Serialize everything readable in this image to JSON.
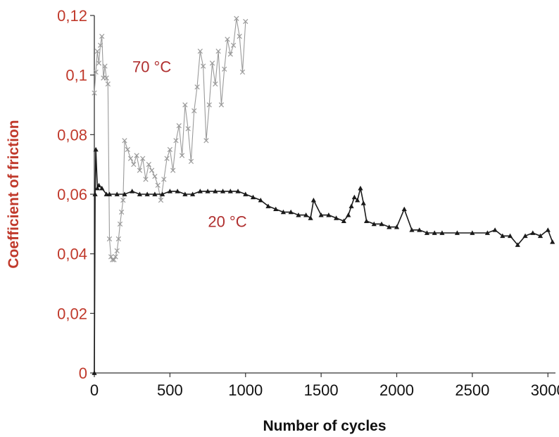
{
  "chart_data": {
    "type": "line",
    "xlabel": "Number of cycles",
    "ylabel": "Coefficient of friction",
    "xlim": [
      0,
      3050
    ],
    "ylim": [
      0,
      0.12
    ],
    "x_ticks": [
      "0",
      "500",
      "1000",
      "1500",
      "2000",
      "2500",
      "3000"
    ],
    "x_tick_values": [
      0,
      500,
      1000,
      1500,
      2000,
      2500,
      3000
    ],
    "y_ticks": [
      "0",
      "0,02",
      "0,04",
      "0,06",
      "0,08",
      "0,1",
      "0,12"
    ],
    "y_tick_values": [
      0,
      0.02,
      0.04,
      0.06,
      0.08,
      0.1,
      0.12
    ],
    "grid": false,
    "annotations": [
      {
        "text": "70 °C",
        "x": 380,
        "y": 0.101
      },
      {
        "text": "20 °C",
        "x": 880,
        "y": 0.049
      }
    ],
    "series": [
      {
        "color": "#9a9a9a",
        "marker": "x",
        "x": [
          0,
          10,
          20,
          30,
          40,
          50,
          60,
          70,
          80,
          90,
          100,
          110,
          120,
          130,
          140,
          150,
          160,
          170,
          180,
          190,
          200,
          220,
          240,
          260,
          280,
          300,
          320,
          340,
          360,
          380,
          400,
          420,
          440,
          460,
          480,
          500,
          520,
          540,
          560,
          580,
          600,
          620,
          640,
          660,
          680,
          700,
          720,
          740,
          760,
          780,
          800,
          820,
          840,
          860,
          880,
          900,
          920,
          940,
          960,
          980,
          1000
        ],
        "y": [
          0.094,
          0.101,
          0.108,
          0.104,
          0.11,
          0.113,
          0.099,
          0.103,
          0.099,
          0.097,
          0.045,
          0.039,
          0.038,
          0.038,
          0.039,
          0.041,
          0.045,
          0.05,
          0.054,
          0.058,
          0.078,
          0.075,
          0.072,
          0.07,
          0.073,
          0.068,
          0.072,
          0.065,
          0.07,
          0.068,
          0.066,
          0.063,
          0.058,
          0.065,
          0.072,
          0.075,
          0.068,
          0.078,
          0.083,
          0.073,
          0.09,
          0.082,
          0.071,
          0.088,
          0.096,
          0.108,
          0.103,
          0.078,
          0.09,
          0.104,
          0.097,
          0.108,
          0.09,
          0.102,
          0.112,
          0.107,
          0.11,
          0.119,
          0.113,
          0.101,
          0.118
        ]
      },
      {
        "color": "#1a1a1a",
        "marker": "triangle",
        "x": [
          0,
          5,
          10,
          20,
          30,
          50,
          80,
          100,
          150,
          200,
          250,
          300,
          350,
          400,
          450,
          500,
          550,
          600,
          650,
          700,
          750,
          800,
          850,
          900,
          950,
          1000,
          1050,
          1100,
          1150,
          1200,
          1250,
          1300,
          1350,
          1400,
          1430,
          1450,
          1500,
          1550,
          1600,
          1650,
          1680,
          1700,
          1720,
          1740,
          1760,
          1780,
          1800,
          1850,
          1900,
          1950,
          2000,
          2050,
          2100,
          2150,
          2200,
          2250,
          2300,
          2400,
          2500,
          2600,
          2650,
          2700,
          2750,
          2800,
          2850,
          2900,
          2950,
          3000,
          3030
        ],
        "y": [
          0.0,
          0.06,
          0.075,
          0.062,
          0.063,
          0.062,
          0.06,
          0.06,
          0.06,
          0.06,
          0.061,
          0.06,
          0.06,
          0.06,
          0.06,
          0.061,
          0.061,
          0.06,
          0.06,
          0.061,
          0.061,
          0.061,
          0.061,
          0.061,
          0.061,
          0.06,
          0.059,
          0.058,
          0.056,
          0.055,
          0.054,
          0.054,
          0.053,
          0.053,
          0.052,
          0.058,
          0.053,
          0.053,
          0.052,
          0.051,
          0.053,
          0.056,
          0.059,
          0.058,
          0.062,
          0.057,
          0.051,
          0.05,
          0.05,
          0.049,
          0.049,
          0.055,
          0.048,
          0.048,
          0.047,
          0.047,
          0.047,
          0.047,
          0.047,
          0.047,
          0.048,
          0.046,
          0.046,
          0.043,
          0.046,
          0.047,
          0.046,
          0.048,
          0.044
        ]
      }
    ]
  }
}
